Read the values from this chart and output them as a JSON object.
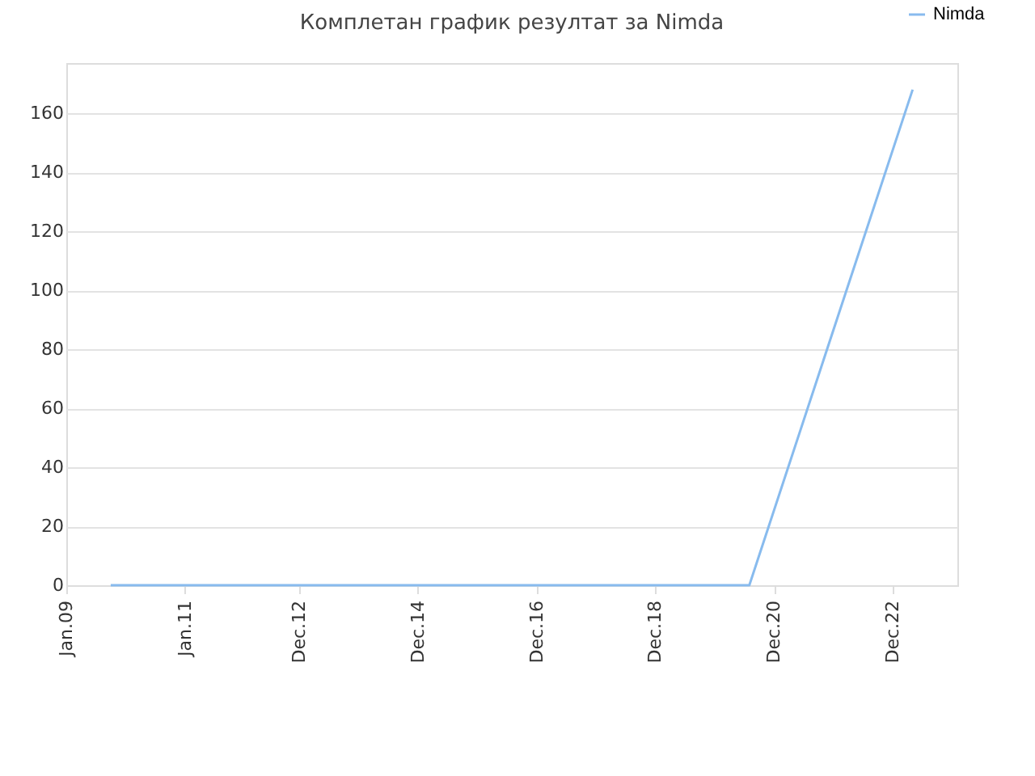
{
  "chart_data": {
    "type": "line",
    "title": "Комплетан график резултат за Nimda",
    "x": [
      "2009-10",
      "2020-07",
      "2023-04"
    ],
    "series": [
      {
        "name": "Nimda",
        "color": "#88bbee",
        "values": [
          0,
          0,
          168
        ]
      }
    ],
    "xlim": [
      "2009-01",
      "2024-01"
    ],
    "xticks": [
      {
        "value": "2009-01",
        "label": "Jan.09"
      },
      {
        "value": "2011-01",
        "label": "Jan.11"
      },
      {
        "value": "2012-12",
        "label": "Dec.12"
      },
      {
        "value": "2014-12",
        "label": "Dec.14"
      },
      {
        "value": "2016-12",
        "label": "Dec.16"
      },
      {
        "value": "2018-12",
        "label": "Dec.18"
      },
      {
        "value": "2020-12",
        "label": "Dec.20"
      },
      {
        "value": "2022-12",
        "label": "Dec.22"
      }
    ],
    "ylim": [
      0,
      177
    ],
    "yticks": [
      0,
      20,
      40,
      60,
      80,
      100,
      120,
      140,
      160
    ],
    "grid": "y",
    "legend": "top right",
    "marker": "none",
    "line_style": "solid"
  }
}
